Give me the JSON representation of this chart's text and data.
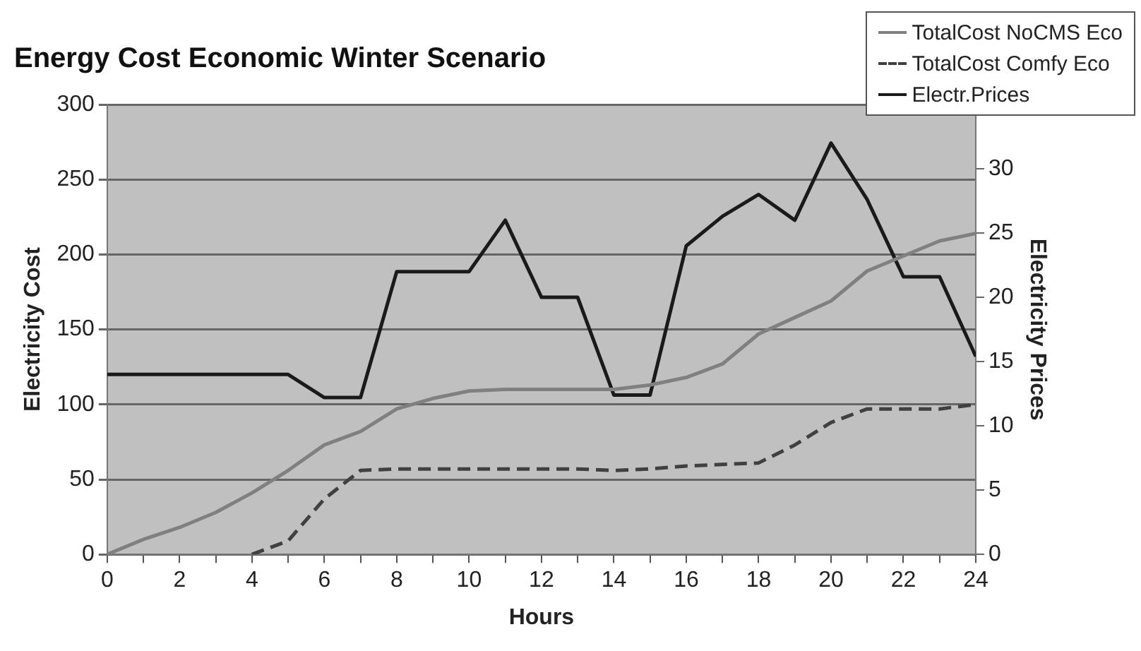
{
  "chart_data": {
    "type": "line",
    "title": "Energy Cost Economic Winter Scenario",
    "xlabel": "Hours",
    "ylabel": "Electricity Cost",
    "y2label": "Electricity Prices",
    "x": [
      0,
      1,
      2,
      3,
      4,
      5,
      6,
      7,
      8,
      9,
      10,
      11,
      12,
      13,
      14,
      15,
      16,
      17,
      18,
      19,
      20,
      21,
      22,
      23,
      24
    ],
    "series": [
      {
        "name": "TotalCost NoCMS Eco",
        "color": "#808080",
        "line_style": "solid",
        "values": [
          0,
          10,
          18,
          28,
          41,
          56,
          73,
          82,
          97,
          104,
          109,
          110,
          110,
          110,
          110,
          113,
          118,
          127,
          147,
          158,
          169,
          189,
          199,
          209,
          214
        ]
      },
      {
        "name": "TotalCost Comfy Eco",
        "color": "#404040",
        "line_style": "dashed",
        "values": [
          null,
          null,
          null,
          null,
          0,
          9,
          37,
          56,
          57,
          57,
          57,
          57,
          57,
          57,
          56,
          57,
          59,
          60,
          61,
          73,
          88,
          97,
          97,
          97,
          100
        ]
      },
      {
        "name": "Electr.Prices",
        "color": "#1a1a1a",
        "line_style": "solid",
        "axis": "y2",
        "values": [
          14,
          14,
          14,
          14,
          14,
          14,
          12.2,
          12.2,
          22,
          22,
          22,
          26,
          20,
          20,
          12.4,
          12.4,
          24,
          26.3,
          28,
          26,
          32,
          27.6,
          21.6,
          21.6,
          15.4
        ]
      }
    ],
    "xlim": [
      0,
      24
    ],
    "xticks": [
      0,
      {
        "value": 1,
        "label": null
      },
      2,
      {
        "value": 3,
        "label": null
      },
      4,
      {
        "value": 5,
        "label": null
      },
      6,
      {
        "value": 7,
        "label": null
      },
      8,
      {
        "value": 9,
        "label": null
      },
      10,
      {
        "value": 11,
        "label": null
      },
      12,
      {
        "value": 13,
        "label": null
      },
      14,
      {
        "value": 15,
        "label": null
      },
      16,
      {
        "value": 17,
        "label": null
      },
      18,
      {
        "value": 19,
        "label": null
      },
      20,
      {
        "value": 21,
        "label": null
      },
      22,
      {
        "value": 23,
        "label": null
      },
      24
    ],
    "ylim": [
      0,
      300
    ],
    "yticks": [
      0,
      50,
      100,
      150,
      200,
      250,
      300
    ],
    "y2lim": [
      0,
      35
    ],
    "y2ticks": [
      0,
      5,
      10,
      15,
      20,
      25,
      30
    ],
    "grid": "y",
    "legend": "top right",
    "marker": "none"
  }
}
